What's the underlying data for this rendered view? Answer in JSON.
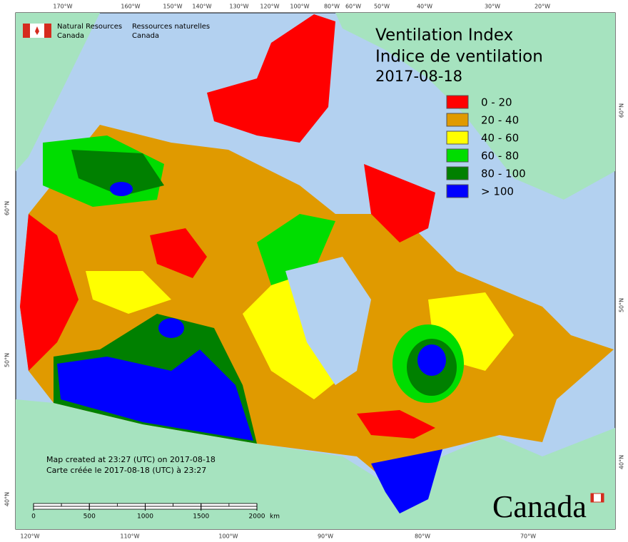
{
  "map": {
    "title_en": "Ventilation Index",
    "title_fr": "Indice de ventilation",
    "date": "2017-08-18",
    "legend": [
      {
        "label": "0 - 20",
        "color": "#ff0000"
      },
      {
        "label": "20 - 40",
        "color": "#e09a00"
      },
      {
        "label": "40 - 60",
        "color": "#ffff00"
      },
      {
        "label": "60 - 80",
        "color": "#00dd00"
      },
      {
        "label": "80 - 100",
        "color": "#008000"
      },
      {
        "label": "> 100",
        "color": "#0000ff"
      }
    ],
    "top_labels": [
      "170°W",
      "160°W",
      "150°W",
      "140°W",
      "130°W",
      "120°W",
      "100°W",
      "80°W",
      "60°W",
      "50°W",
      "40°W",
      "30°W",
      "20°W"
    ],
    "bottom_labels": [
      "120°W",
      "110°W",
      "100°W",
      "90°W",
      "80°W",
      "70°W"
    ],
    "left_labels": [
      "60°N",
      "50°N",
      "40°N"
    ],
    "right_labels": [
      "60°N",
      "50°N",
      "40°N"
    ]
  },
  "logo": {
    "en_line1": "Natural Resources",
    "en_line2": "Canada",
    "fr_line1": "Ressources naturelles",
    "fr_line2": "Canada"
  },
  "footer": {
    "line_en": "Map created at 23:27 (UTC) on 2017-08-18",
    "line_fr": "Carte créée le 2017-08-18 (UTC) à 23:27"
  },
  "scale_bar": {
    "ticks": [
      0,
      500,
      1000,
      1500,
      2000
    ],
    "unit": "km"
  },
  "wordmark": "Canada"
}
